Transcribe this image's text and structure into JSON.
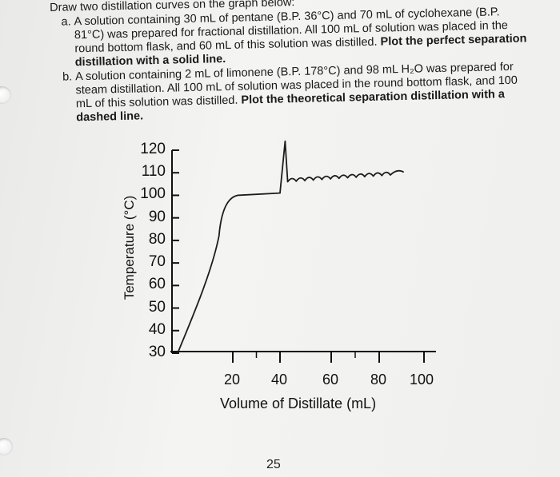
{
  "worksheet": {
    "intro": "Draw two distillation curves on the graph below:",
    "questions": [
      {
        "label": "a.",
        "text": "A solution containing 30 mL of pentane (B.P. 36°C) and 70 mL of cyclohexane (B.P. 81°C) was prepared for fractional distillation. All 100 mL of solution was placed in the round bottom flask, and 60 mL of this solution was distilled.",
        "instruction": "Plot the perfect separation distillation with a solid line."
      },
      {
        "label": "b.",
        "text": "A solution containing 2 mL of limonene (B.P. 178°C) and 98 mL H₂O was prepared for steam distillation. All 100 mL of solution was placed in the round bottom flask, and 100 mL of this solution was distilled.",
        "instruction": "Plot the theoretical separation distillation with a dashed line."
      }
    ],
    "page_number": "25"
  },
  "chart_data": {
    "type": "line",
    "ylabel": "Temperature (°C)",
    "xlabel": "Volume of Distillate (mL)",
    "y_ticks": [
      "120",
      "110",
      "100",
      "90",
      "80",
      "70",
      "60",
      "50",
      "40",
      "30"
    ],
    "x_ticks": [
      "20",
      "40",
      "60",
      "80",
      "100"
    ],
    "ylim": [
      30,
      120
    ],
    "xlim": [
      0,
      100
    ],
    "series": [
      {
        "style": "solid-handdrawn",
        "points": [
          [
            0,
            30
          ],
          [
            15,
            82
          ],
          [
            22,
            100
          ],
          [
            40,
            101
          ],
          [
            42,
            124
          ],
          [
            43,
            106
          ],
          [
            55,
            107
          ],
          [
            70,
            108
          ],
          [
            85,
            109
          ]
        ]
      }
    ]
  }
}
